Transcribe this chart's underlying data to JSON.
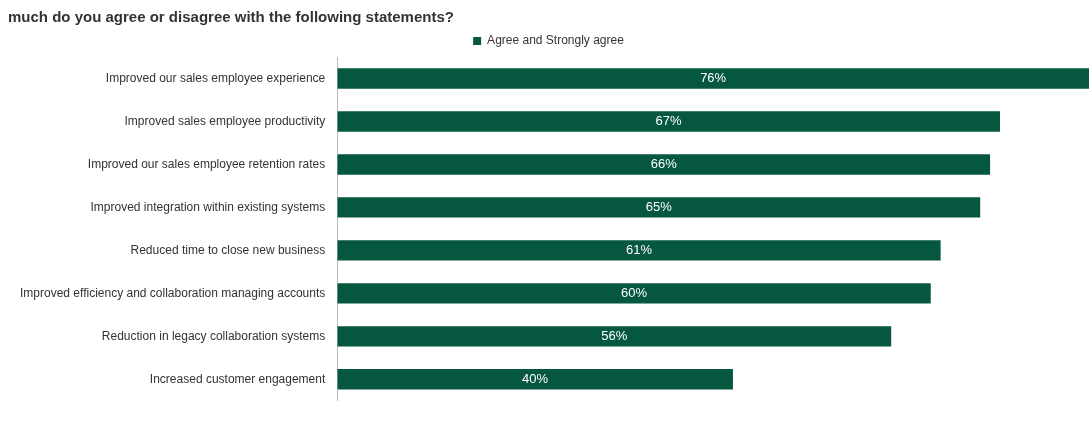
{
  "chart_data": {
    "type": "bar",
    "orientation": "horizontal",
    "title": "much do you agree or disagree with the following statements?",
    "categories": [
      "Improved our sales employee experience",
      "Improved sales employee productivity",
      "Improved our sales employee retention rates",
      "Improved integration within existing systems",
      "Reduced time to close new business",
      "Improved efficiency and collaboration managing accounts",
      "Reduction in legacy collaboration systems",
      "Increased customer engagement"
    ],
    "series": [
      {
        "name": "Agree and Strongly agree",
        "color": "#065740",
        "values": [
          76,
          67,
          66,
          65,
          61,
          60,
          56,
          40
        ],
        "value_labels": [
          "76%",
          "67%",
          "66%",
          "65%",
          "61%",
          "60%",
          "56%",
          "40%"
        ]
      }
    ],
    "legend": "top",
    "grid": false
  }
}
